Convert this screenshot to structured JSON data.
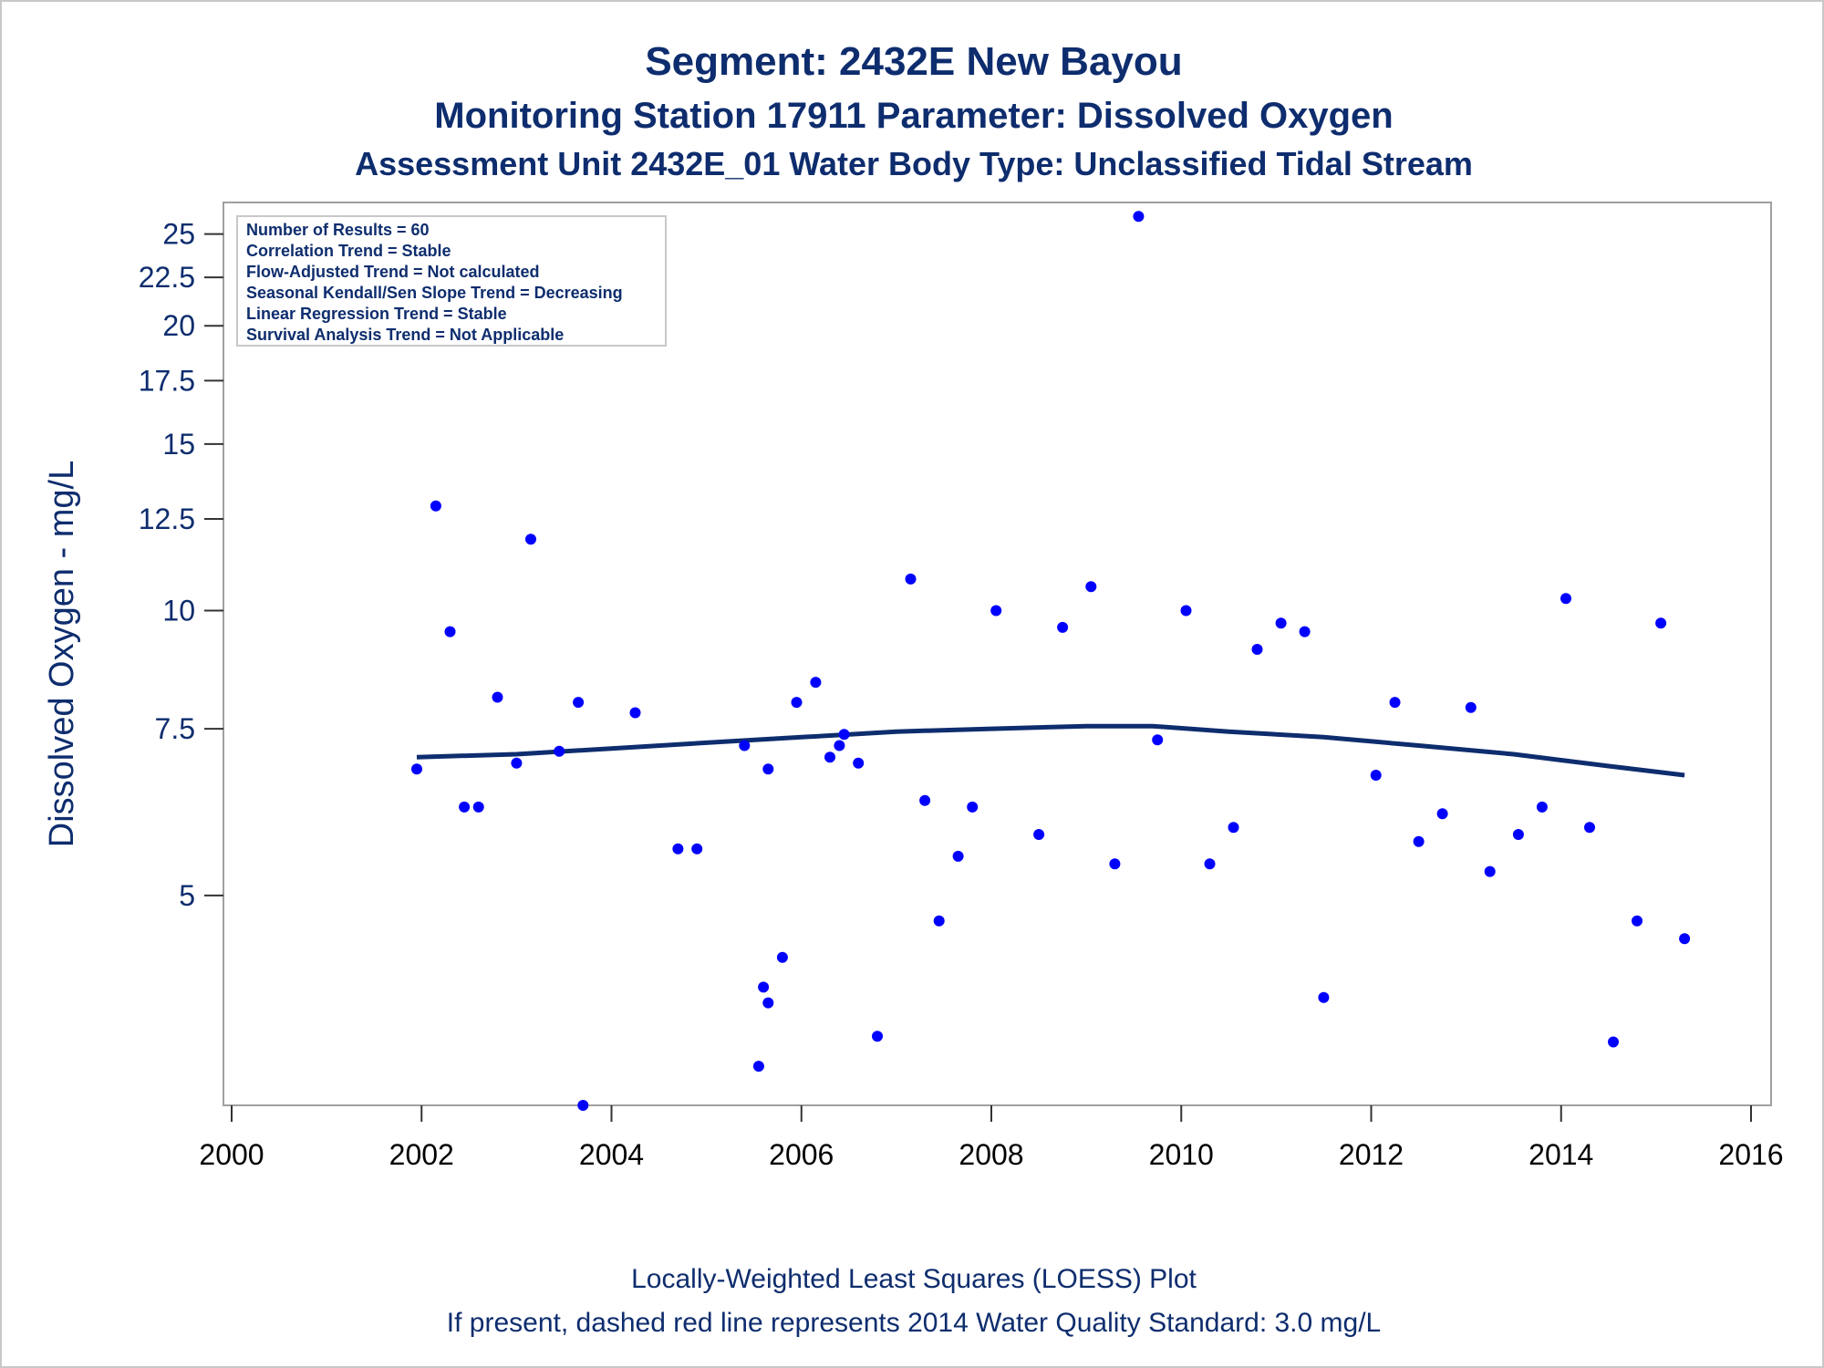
{
  "title": "Segment: 2432E  New Bayou",
  "subtitle1": "Monitoring Station 17911 Parameter: Dissolved Oxygen",
  "subtitle2": "Assessment Unit 2432E_01   Water Body Type: Unclassified Tidal Stream",
  "footnote1": "Locally-Weighted Least Squares (LOESS) Plot",
  "footnote2": "If present, dashed red line represents 2014 Water Quality Standard: 3.0 mg/L",
  "stats": [
    "Number of Results = 60",
    "Correlation Trend = Stable",
    "Flow-Adjusted Trend = Not calculated",
    "Seasonal Kendall/Sen Slope Trend = Decreasing",
    "Linear Regression Trend = Stable",
    "Survival Analysis Trend = Not Applicable"
  ],
  "colors": {
    "points": "#0000ff",
    "loess": "#0e2d6e",
    "text": "#0e2d6e",
    "frame": "#a0a0a0"
  },
  "chart_data": {
    "type": "scatter",
    "xlabel": "",
    "ylabel": "Dissolved Oxygen - mg/L",
    "xlim": [
      2000,
      2016
    ],
    "xticks": [
      2000,
      2002,
      2004,
      2006,
      2008,
      2010,
      2012,
      2014,
      2016
    ],
    "xtick_labels": [
      "2000",
      "2002",
      "2004",
      "2006",
      "2008",
      "2010",
      "2012",
      "2014",
      "2016"
    ],
    "yscale": "log",
    "ylim": [
      3.0,
      27.0
    ],
    "yticks": [
      5,
      7.5,
      10,
      12.5,
      15,
      17.5,
      20,
      22.5,
      25
    ],
    "ytick_labels": [
      "5",
      "7.5",
      "10",
      "12.5",
      "15",
      "17.5",
      "20",
      "22.5",
      "25"
    ],
    "grid": false,
    "legend": "none",
    "points": [
      [
        2001.95,
        6.8
      ],
      [
        2002.15,
        12.9
      ],
      [
        2002.3,
        9.5
      ],
      [
        2002.45,
        6.2
      ],
      [
        2002.6,
        6.2
      ],
      [
        2002.8,
        8.1
      ],
      [
        2003.0,
        6.9
      ],
      [
        2003.15,
        11.9
      ],
      [
        2003.45,
        7.1
      ],
      [
        2003.65,
        8.0
      ],
      [
        2003.7,
        3.0
      ],
      [
        2004.25,
        7.8
      ],
      [
        2004.7,
        5.6
      ],
      [
        2004.9,
        5.6
      ],
      [
        2005.4,
        7.2
      ],
      [
        2005.55,
        3.3
      ],
      [
        2005.6,
        4.0
      ],
      [
        2005.65,
        6.8
      ],
      [
        2005.65,
        3.85
      ],
      [
        2005.8,
        4.3
      ],
      [
        2005.95,
        8.0
      ],
      [
        2006.15,
        8.4
      ],
      [
        2006.3,
        7.0
      ],
      [
        2006.4,
        7.2
      ],
      [
        2006.45,
        7.4
      ],
      [
        2006.6,
        6.9
      ],
      [
        2006.8,
        3.55
      ],
      [
        2007.15,
        10.8
      ],
      [
        2007.3,
        6.3
      ],
      [
        2007.45,
        4.7
      ],
      [
        2007.65,
        5.5
      ],
      [
        2007.8,
        6.2
      ],
      [
        2008.05,
        10.0
      ],
      [
        2008.5,
        5.8
      ],
      [
        2008.75,
        9.6
      ],
      [
        2009.05,
        10.6
      ],
      [
        2009.3,
        5.4
      ],
      [
        2009.55,
        26.1
      ],
      [
        2009.75,
        7.3
      ],
      [
        2010.05,
        10.0
      ],
      [
        2010.3,
        5.4
      ],
      [
        2010.55,
        5.9
      ],
      [
        2010.8,
        9.1
      ],
      [
        2011.05,
        9.7
      ],
      [
        2011.3,
        9.5
      ],
      [
        2011.5,
        3.9
      ],
      [
        2012.05,
        6.7
      ],
      [
        2012.25,
        8.0
      ],
      [
        2012.5,
        5.7
      ],
      [
        2012.75,
        6.1
      ],
      [
        2013.05,
        7.9
      ],
      [
        2013.25,
        5.3
      ],
      [
        2013.55,
        5.8
      ],
      [
        2013.8,
        6.2
      ],
      [
        2014.05,
        10.3
      ],
      [
        2014.3,
        5.9
      ],
      [
        2014.55,
        3.5
      ],
      [
        2014.8,
        4.7
      ],
      [
        2015.05,
        9.7
      ],
      [
        2015.3,
        4.5
      ]
    ],
    "loess": [
      [
        2001.95,
        7.0
      ],
      [
        2003.0,
        7.05
      ],
      [
        2004.0,
        7.15
      ],
      [
        2005.0,
        7.25
      ],
      [
        2006.0,
        7.35
      ],
      [
        2007.0,
        7.45
      ],
      [
        2008.0,
        7.5
      ],
      [
        2009.0,
        7.55
      ],
      [
        2009.7,
        7.55
      ],
      [
        2010.5,
        7.45
      ],
      [
        2011.5,
        7.35
      ],
      [
        2012.5,
        7.2
      ],
      [
        2013.5,
        7.05
      ],
      [
        2014.5,
        6.85
      ],
      [
        2015.3,
        6.7
      ]
    ]
  }
}
